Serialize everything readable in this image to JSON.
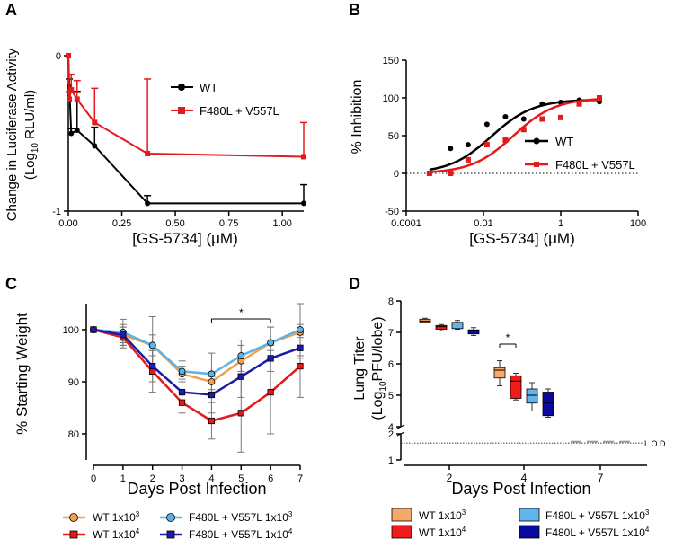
{
  "chart_data": [
    {
      "panel": "A",
      "type": "line",
      "xlabel": "[GS-5734] (μM)",
      "ylabel_line1": "Change in Luciferase Activity",
      "ylabel_line2": "(Log",
      "ylabel_sub": "10",
      "ylabel_line2_rest": " RLU/ml)",
      "xlim": [
        0,
        1.1
      ],
      "ylim": [
        -1,
        0
      ],
      "xticks": [
        "0.00",
        "0.25",
        "0.50",
        "0.75",
        "1.00"
      ],
      "xtick_values": [
        0,
        0.25,
        0.5,
        0.75,
        1.0
      ],
      "yticks": [
        "0",
        "-1"
      ],
      "ytick_values": [
        0,
        -1
      ],
      "series": [
        {
          "name": "WT",
          "color": "#000000",
          "marker": "circle",
          "x": [
            0.0,
            0.0046,
            0.0137,
            0.041,
            0.123,
            0.37,
            1.1
          ],
          "y": [
            0.0,
            -0.2,
            -0.5,
            -0.48,
            -0.58,
            -0.95,
            -0.95
          ],
          "err": [
            0,
            0.05,
            0.03,
            0.25,
            0.12,
            0.05,
            0.12
          ]
        },
        {
          "name": "F480L + V557L",
          "color": "#e31a1c",
          "marker": "square",
          "x": [
            0.0,
            0.0046,
            0.0137,
            0.041,
            0.123,
            0.37,
            1.1
          ],
          "y": [
            0.0,
            -0.28,
            -0.22,
            -0.28,
            -0.43,
            -0.63,
            -0.65
          ],
          "err": [
            0,
            0.05,
            0.1,
            0.12,
            0.22,
            0.48,
            0.22
          ]
        }
      ]
    },
    {
      "panel": "B",
      "type": "scatter",
      "xscale": "log",
      "xlabel": "[GS-5734] (μM)",
      "ylabel": "% Inhibition",
      "xlim": [
        0.0001,
        100
      ],
      "ylim": [
        -50,
        150
      ],
      "xticks": [
        "0.0001",
        "0.01",
        "1",
        "100"
      ],
      "xtick_values": [
        0.0001,
        0.01,
        1,
        100
      ],
      "yticks": [
        "-50",
        "0",
        "50",
        "100",
        "150"
      ],
      "ytick_values": [
        -50,
        0,
        50,
        100,
        150
      ],
      "series": [
        {
          "name": "WT",
          "color": "#000000",
          "marker": "circle",
          "x": [
            0.0004,
            0.0014,
            0.004,
            0.0123,
            0.037,
            0.11,
            0.33,
            1.0,
            3.0,
            10.0
          ],
          "y": [
            0,
            33,
            38,
            65,
            75,
            72,
            92,
            94,
            97,
            95
          ],
          "fit": {
            "bottom": 0,
            "top": 98,
            "ic50": 0.016,
            "hill": 0.8
          }
        },
        {
          "name": "F480L + V557L",
          "color": "#e31a1c",
          "marker": "square",
          "x": [
            0.0004,
            0.0014,
            0.004,
            0.0123,
            0.037,
            0.11,
            0.33,
            1.0,
            3.0,
            10.0
          ],
          "y": [
            0,
            0,
            18,
            38,
            44,
            58,
            72,
            74,
            92,
            100
          ],
          "fit": {
            "bottom": 0,
            "top": 100,
            "ic50": 0.06,
            "hill": 0.8
          }
        }
      ],
      "reference_line": {
        "y": 0,
        "style": "dotted"
      }
    },
    {
      "panel": "C",
      "type": "line",
      "xlabel": "Days Post Infection",
      "ylabel": "% Starting Weight",
      "xlim": [
        0,
        7
      ],
      "ylim": [
        75,
        105
      ],
      "xticks": [
        "0",
        "1",
        "2",
        "3",
        "4",
        "5",
        "6",
        "7"
      ],
      "xtick_values": [
        0,
        1,
        2,
        3,
        4,
        5,
        6,
        7
      ],
      "yticks": [
        "80",
        "90",
        "100"
      ],
      "ytick_values": [
        80,
        90,
        100
      ],
      "significance": {
        "from": 4,
        "to": 6,
        "label": "*"
      },
      "series": [
        {
          "name": "WT 1x10",
          "sup": "3",
          "color": "#f0a050",
          "marker": "circle",
          "x": [
            0,
            1,
            2,
            3,
            4,
            5,
            6,
            7
          ],
          "y": [
            100,
            99.0,
            97.0,
            91.5,
            90.0,
            94.0,
            97.5,
            99.5
          ],
          "err": [
            0,
            1.5,
            2.0,
            1.5,
            1.5,
            3.0,
            3.0,
            1.5
          ]
        },
        {
          "name": "WT 1x10",
          "sup": "4",
          "color": "#e31a1c",
          "marker": "square",
          "x": [
            0,
            1,
            2,
            3,
            4,
            5,
            6,
            7
          ],
          "y": [
            100,
            98.5,
            92.0,
            86.0,
            82.5,
            84.0,
            88.0,
            93.0
          ],
          "err": [
            0,
            2.0,
            4.0,
            2.0,
            3.5,
            7.5,
            8.0,
            6.0
          ]
        },
        {
          "name": "F480L + V557L 1x10",
          "sup": "3",
          "color": "#5ab4e6",
          "marker": "circle",
          "x": [
            0,
            1,
            2,
            3,
            4,
            5,
            6,
            7
          ],
          "y": [
            100,
            99.5,
            97.0,
            92.0,
            91.5,
            95.0,
            97.5,
            100.0
          ],
          "err": [
            0,
            2.5,
            5.5,
            2.0,
            4.0,
            3.0,
            3.0,
            5.0
          ]
        },
        {
          "name": "F480L + V557L 1x10",
          "sup": "4",
          "color": "#1c1caa",
          "marker": "square",
          "x": [
            0,
            1,
            2,
            3,
            4,
            5,
            6,
            7
          ],
          "y": [
            100,
            99.0,
            93.0,
            88.0,
            87.5,
            91.0,
            94.5,
            96.5
          ],
          "err": [
            0,
            2.0,
            3.0,
            2.5,
            3.5,
            4.0,
            2.5,
            2.0
          ]
        }
      ]
    },
    {
      "panel": "D",
      "type": "box",
      "xlabel": "Days Post Infection",
      "ylabel_line1": "Lung Titer",
      "ylabel_line2": "(Log",
      "ylabel_sub": "10",
      "ylabel_line2_rest": "PFU/lobe)",
      "categories": [
        "2",
        "4",
        "7"
      ],
      "yticks": [
        "1",
        "2",
        "4",
        "5",
        "6",
        "7",
        "8"
      ],
      "ytick_values": [
        1,
        2,
        4,
        5,
        6,
        7,
        8
      ],
      "axis_break": [
        2,
        4
      ],
      "lod": {
        "value": 1.65,
        "label": "L.O.D."
      },
      "significance": {
        "category": "4",
        "groups": [
          0,
          1
        ],
        "label": "*"
      },
      "groups": [
        {
          "name": "WT 1x10",
          "sup": "3",
          "color": "#f6a96a"
        },
        {
          "name": "WT 1x10",
          "sup": "4",
          "color": "#f01c1c"
        },
        {
          "name": "F480L + V557L 1x10",
          "sup": "3",
          "color": "#62b5ea"
        },
        {
          "name": "F480L + V557L 1x10",
          "sup": "4",
          "color": "#0a0aa0"
        }
      ],
      "boxes": [
        {
          "category": "2",
          "group": 0,
          "min": 7.3,
          "q1": 7.32,
          "median": 7.36,
          "q3": 7.42,
          "max": 7.45
        },
        {
          "category": "2",
          "group": 1,
          "min": 7.05,
          "q1": 7.1,
          "median": 7.18,
          "q3": 7.22,
          "max": 7.25
        },
        {
          "category": "2",
          "group": 2,
          "min": 7.1,
          "q1": 7.12,
          "median": 7.3,
          "q3": 7.32,
          "max": 7.38
        },
        {
          "category": "2",
          "group": 3,
          "min": 6.9,
          "q1": 6.95,
          "median": 7.05,
          "q3": 7.08,
          "max": 7.15
        },
        {
          "category": "4",
          "group": 0,
          "min": 5.3,
          "q1": 5.55,
          "median": 5.8,
          "q3": 5.88,
          "max": 6.1
        },
        {
          "category": "4",
          "group": 1,
          "min": 4.85,
          "q1": 4.9,
          "median": 5.45,
          "q3": 5.62,
          "max": 5.7
        },
        {
          "category": "4",
          "group": 2,
          "min": 4.5,
          "q1": 4.75,
          "median": 5.0,
          "q3": 5.2,
          "max": 5.4
        },
        {
          "category": "4",
          "group": 3,
          "min": 4.3,
          "q1": 4.35,
          "median": 4.75,
          "q3": 5.1,
          "max": 5.2
        },
        {
          "category": "7",
          "group": 0,
          "min": 1.7,
          "q1": 1.7,
          "median": 1.7,
          "q3": 1.7,
          "max": 1.7
        },
        {
          "category": "7",
          "group": 1,
          "min": 1.7,
          "q1": 1.7,
          "median": 1.7,
          "q3": 1.7,
          "max": 1.7
        },
        {
          "category": "7",
          "group": 2,
          "min": 1.7,
          "q1": 1.7,
          "median": 1.7,
          "q3": 1.7,
          "max": 1.7
        },
        {
          "category": "7",
          "group": 3,
          "min": 1.7,
          "q1": 1.7,
          "median": 1.7,
          "q3": 1.7,
          "max": 1.7
        }
      ]
    }
  ]
}
